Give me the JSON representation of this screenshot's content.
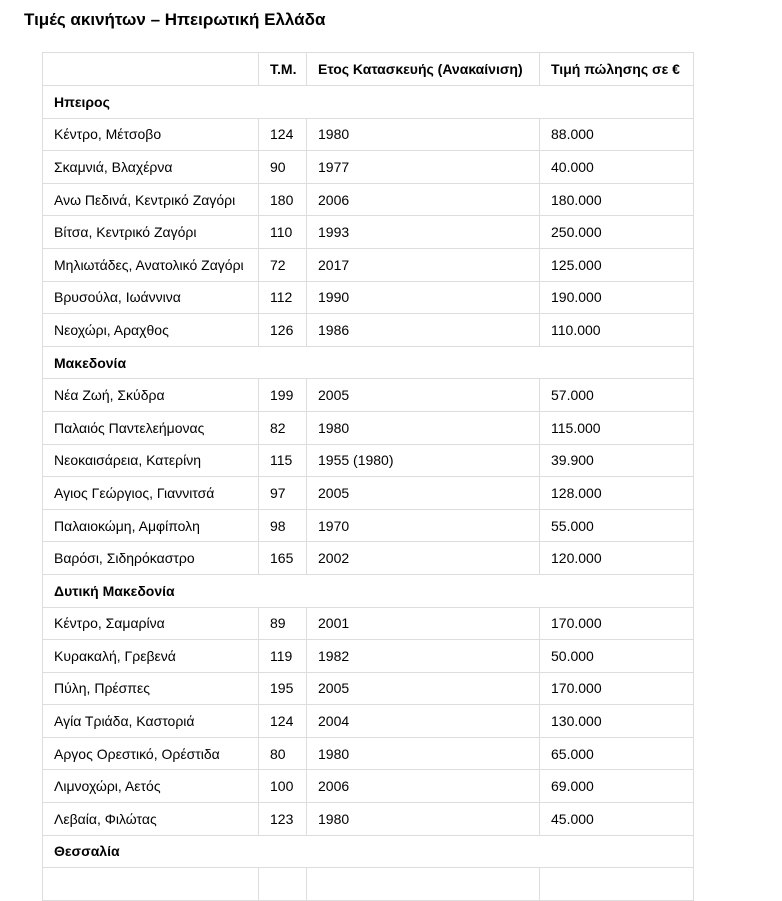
{
  "title": "Τιμές ακινήτων – Ηπειρωτική Ελλάδα",
  "table": {
    "headers": [
      "",
      "Τ.Μ.",
      "Ετος Κατασκευής (Ανακαίνιση)",
      "Τιμή πώλησης σε €"
    ],
    "regions": [
      {
        "name": "Ηπειρος",
        "rows": [
          [
            "Κέντρο, Μέτσοβο",
            "124",
            "1980",
            "88.000"
          ],
          [
            "Σκαμνιά, Βλαχέρνα",
            "90",
            "1977",
            "40.000"
          ],
          [
            "Ανω Πεδινά, Κεντρικό Ζαγόρι",
            "180",
            "2006",
            "180.000"
          ],
          [
            "Βίτσα, Κεντρικό Ζαγόρι",
            "110",
            "1993",
            "250.000"
          ],
          [
            "Μηλιωτάδες, Ανατολικό Ζαγόρι",
            "72",
            "2017",
            "125.000"
          ],
          [
            "Βρυσούλα, Ιωάννινα",
            "112",
            "1990",
            "190.000"
          ],
          [
            "Νεοχώρι, Αραχθος",
            "126",
            "1986",
            "110.000"
          ]
        ]
      },
      {
        "name": "Μακεδονία",
        "rows": [
          [
            "Νέα Ζωή, Σκύδρα",
            "199",
            "2005",
            "57.000"
          ],
          [
            "Παλαιός Παντελεήμονας",
            "82",
            "1980",
            "115.000"
          ],
          [
            "Νεοκαισάρεια, Κατερίνη",
            "115",
            "1955 (1980)",
            "39.900"
          ],
          [
            "Αγιος Γεώργιος, Γιαννιτσά",
            "97",
            "2005",
            "128.000"
          ],
          [
            "Παλαιοκώμη, Αμφίπολη",
            "98",
            "1970",
            "55.000"
          ],
          [
            "Βαρόσι, Σιδηρόκαστρο",
            "165",
            "2002",
            "120.000"
          ]
        ]
      },
      {
        "name": "Δυτική Μακεδονία",
        "rows": [
          [
            "Κέντρο, Σαμαρίνα",
            "89",
            "2001",
            "170.000"
          ],
          [
            "Κυρακαλή, Γρεβενά",
            "119",
            "1982",
            "50.000"
          ],
          [
            "Πύλη, Πρέσπες",
            "195",
            "2005",
            "170.000"
          ],
          [
            "Αγία Τριάδα, Καστοριά",
            "124",
            "2004",
            "130.000"
          ],
          [
            "Αργος Ορεστικό, Ορέστιδα",
            "80",
            "1980",
            "65.000"
          ],
          [
            "Λιμνοχώρι, Αετός",
            "100",
            "2006",
            "69.000"
          ],
          [
            "Λεβαία, Φιλώτας",
            "123",
            "1980",
            "45.000"
          ]
        ]
      },
      {
        "name": "Θεσσαλία",
        "rows": [
          [
            "",
            "",
            "",
            ""
          ]
        ]
      }
    ]
  }
}
